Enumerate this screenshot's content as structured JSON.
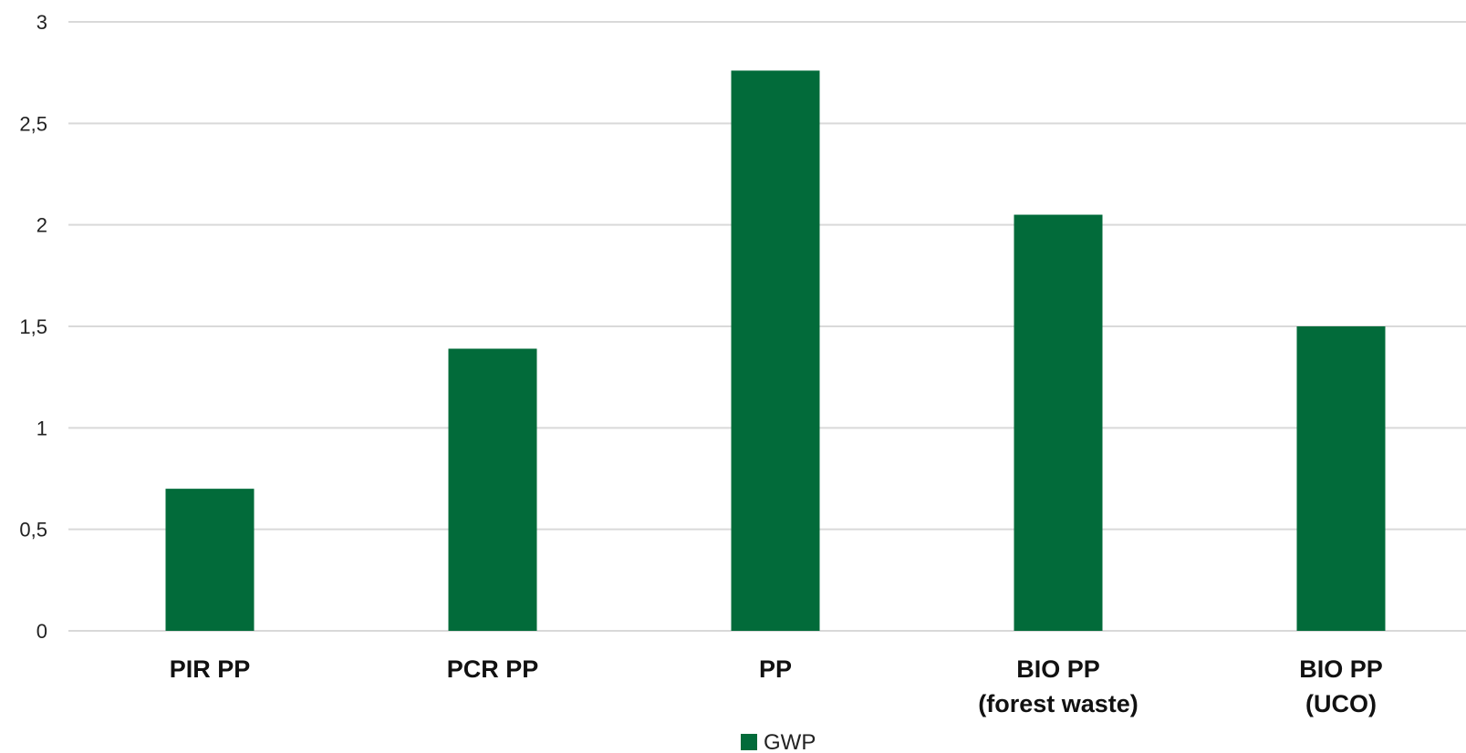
{
  "chart_data": {
    "type": "bar",
    "categories": [
      [
        "PIR PP"
      ],
      [
        "PCR PP"
      ],
      [
        "PP"
      ],
      [
        "BIO PP",
        "(forest waste)"
      ],
      [
        "BIO PP",
        "(UCO)"
      ]
    ],
    "series": [
      {
        "name": "GWP",
        "values": [
          0.7,
          1.39,
          2.76,
          2.05,
          1.5
        ],
        "color": "#026b3a"
      }
    ],
    "yticks": [
      "0",
      "0,5",
      "1",
      "1,5",
      "2",
      "2,5",
      "3"
    ],
    "ylim": [
      0,
      3
    ],
    "grid": true,
    "legend": "bottom",
    "title": "",
    "xlabel": "",
    "ylabel": ""
  }
}
